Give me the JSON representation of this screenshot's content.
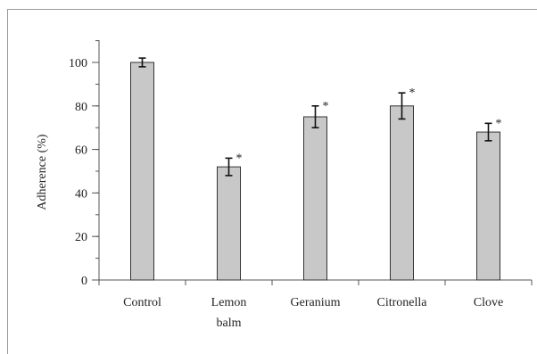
{
  "chart_data": {
    "type": "bar",
    "title": "",
    "xlabel": "",
    "ylabel": "Adherence (%)",
    "ylim": [
      0,
      100
    ],
    "yticks": [
      0,
      20,
      40,
      60,
      80,
      100
    ],
    "categories": [
      [
        "Control"
      ],
      [
        "Lemon",
        "balm"
      ],
      [
        "Geranium"
      ],
      [
        "Citronella"
      ],
      [
        "Clove"
      ]
    ],
    "values": [
      100,
      52,
      75,
      80,
      68
    ],
    "error": [
      2,
      4,
      5,
      6,
      4
    ],
    "significant": [
      false,
      true,
      true,
      true,
      true
    ],
    "significance_marker": "*",
    "grid": false,
    "colors": {
      "bar_fill": "#c8c8c8",
      "bar_stroke": "#333333",
      "axis": "#555555"
    }
  }
}
